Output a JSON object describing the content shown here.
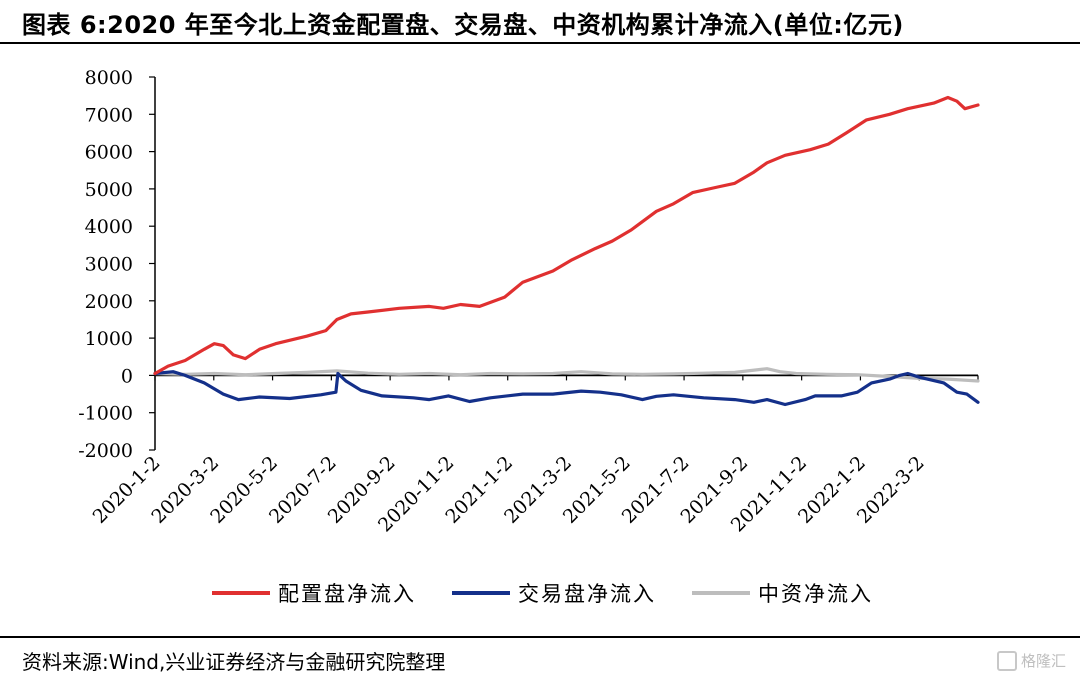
{
  "title": "图表 6:2020 年至今北上资金配置盘、交易盘、中资机构累计净流入(单位:亿元)",
  "source": "资料来源:Wind,兴业证券经济与金融研究院整理",
  "watermark": "格隆汇",
  "chart_data": {
    "type": "line",
    "title": "图表 6:2020 年至今北上资金配置盘、交易盘、中资机构累计净流入(单位:亿元)",
    "xlabel": "",
    "ylabel": "",
    "ylim": [
      -2000,
      8000
    ],
    "yticks": [
      -2000,
      -1000,
      0,
      1000,
      2000,
      3000,
      4000,
      5000,
      6000,
      7000,
      8000
    ],
    "ytick_labels": [
      "-2000",
      "-1000",
      "0",
      "1000",
      "2000",
      "3000",
      "4000",
      "5000",
      "6000",
      "7000",
      "8000"
    ],
    "x_tick_labels": [
      "2020-1-2",
      "2020-3-2",
      "2020-5-2",
      "2020-7-2",
      "2020-9-2",
      "2020-11-2",
      "2021-1-2",
      "2021-3-2",
      "2021-5-2",
      "2021-7-2",
      "2021-9-2",
      "2021-11-2",
      "2022-1-2",
      "2022-3-2"
    ],
    "xlim": [
      "2020-01-02",
      "2022-03-31"
    ],
    "grid": false,
    "legend_position": "bottom",
    "series": [
      {
        "name": "配置盘净流入",
        "color": "#e03030",
        "points": [
          [
            "2020-01-02",
            50
          ],
          [
            "2020-01-15",
            250
          ],
          [
            "2020-02-01",
            400
          ],
          [
            "2020-02-20",
            700
          ],
          [
            "2020-03-01",
            850
          ],
          [
            "2020-03-10",
            800
          ],
          [
            "2020-03-20",
            550
          ],
          [
            "2020-04-01",
            450
          ],
          [
            "2020-04-15",
            700
          ],
          [
            "2020-05-01",
            850
          ],
          [
            "2020-06-01",
            1050
          ],
          [
            "2020-06-20",
            1200
          ],
          [
            "2020-07-01",
            1500
          ],
          [
            "2020-07-15",
            1650
          ],
          [
            "2020-08-01",
            1700
          ],
          [
            "2020-09-01",
            1800
          ],
          [
            "2020-10-01",
            1850
          ],
          [
            "2020-10-15",
            1800
          ],
          [
            "2020-11-01",
            1900
          ],
          [
            "2020-11-20",
            1850
          ],
          [
            "2020-12-15",
            2100
          ],
          [
            "2021-01-02",
            2500
          ],
          [
            "2021-02-01",
            2800
          ],
          [
            "2021-02-20",
            3100
          ],
          [
            "2021-03-15",
            3400
          ],
          [
            "2021-04-01",
            3600
          ],
          [
            "2021-04-20",
            3900
          ],
          [
            "2021-05-15",
            4400
          ],
          [
            "2021-06-01",
            4600
          ],
          [
            "2021-06-20",
            4900
          ],
          [
            "2021-07-15",
            5050
          ],
          [
            "2021-08-01",
            5150
          ],
          [
            "2021-08-20",
            5450
          ],
          [
            "2021-09-02",
            5700
          ],
          [
            "2021-09-20",
            5900
          ],
          [
            "2021-10-15",
            6050
          ],
          [
            "2021-11-02",
            6200
          ],
          [
            "2021-11-20",
            6500
          ],
          [
            "2021-12-10",
            6850
          ],
          [
            "2022-01-02",
            7000
          ],
          [
            "2022-01-20",
            7150
          ],
          [
            "2022-02-15",
            7300
          ],
          [
            "2022-03-01",
            7450
          ],
          [
            "2022-03-10",
            7350
          ],
          [
            "2022-03-18",
            7150
          ],
          [
            "2022-03-31",
            7250
          ]
        ]
      },
      {
        "name": "交易盘净流入",
        "color": "#14308a",
        "points": [
          [
            "2020-01-02",
            50
          ],
          [
            "2020-01-20",
            100
          ],
          [
            "2020-02-01",
            0
          ],
          [
            "2020-02-20",
            -200
          ],
          [
            "2020-03-10",
            -500
          ],
          [
            "2020-03-25",
            -650
          ],
          [
            "2020-04-15",
            -580
          ],
          [
            "2020-05-15",
            -620
          ],
          [
            "2020-06-15",
            -520
          ],
          [
            "2020-06-30",
            -450
          ],
          [
            "2020-07-02",
            50
          ],
          [
            "2020-07-10",
            -150
          ],
          [
            "2020-07-25",
            -400
          ],
          [
            "2020-08-15",
            -550
          ],
          [
            "2020-09-15",
            -600
          ],
          [
            "2020-10-01",
            -650
          ],
          [
            "2020-10-20",
            -550
          ],
          [
            "2020-11-10",
            -700
          ],
          [
            "2020-12-01",
            -600
          ],
          [
            "2021-01-02",
            -500
          ],
          [
            "2021-02-01",
            -500
          ],
          [
            "2021-03-01",
            -420
          ],
          [
            "2021-03-20",
            -450
          ],
          [
            "2021-04-10",
            -520
          ],
          [
            "2021-05-01",
            -650
          ],
          [
            "2021-05-15",
            -560
          ],
          [
            "2021-06-01",
            -520
          ],
          [
            "2021-07-01",
            -600
          ],
          [
            "2021-08-01",
            -650
          ],
          [
            "2021-08-20",
            -720
          ],
          [
            "2021-09-02",
            -650
          ],
          [
            "2021-09-20",
            -780
          ],
          [
            "2021-10-10",
            -650
          ],
          [
            "2021-10-20",
            -550
          ],
          [
            "2021-11-15",
            -550
          ],
          [
            "2021-12-01",
            -450
          ],
          [
            "2021-12-15",
            -200
          ],
          [
            "2022-01-02",
            -100
          ],
          [
            "2022-01-12",
            0
          ],
          [
            "2022-01-20",
            50
          ],
          [
            "2022-02-01",
            -50
          ],
          [
            "2022-02-25",
            -200
          ],
          [
            "2022-03-10",
            -450
          ],
          [
            "2022-03-20",
            -500
          ],
          [
            "2022-03-31",
            -720
          ]
        ]
      },
      {
        "name": "中资净流入",
        "color": "#bdbdbd",
        "points": [
          [
            "2020-01-02",
            50
          ],
          [
            "2020-02-01",
            30
          ],
          [
            "2020-03-01",
            50
          ],
          [
            "2020-04-01",
            20
          ],
          [
            "2020-05-01",
            50
          ],
          [
            "2020-06-01",
            80
          ],
          [
            "2020-07-01",
            120
          ],
          [
            "2020-08-01",
            60
          ],
          [
            "2020-09-01",
            30
          ],
          [
            "2020-10-01",
            50
          ],
          [
            "2020-11-01",
            20
          ],
          [
            "2020-12-01",
            50
          ],
          [
            "2021-01-02",
            40
          ],
          [
            "2021-02-01",
            50
          ],
          [
            "2021-03-01",
            100
          ],
          [
            "2021-04-01",
            40
          ],
          [
            "2021-05-01",
            30
          ],
          [
            "2021-06-01",
            40
          ],
          [
            "2021-07-01",
            60
          ],
          [
            "2021-08-01",
            80
          ],
          [
            "2021-09-02",
            180
          ],
          [
            "2021-09-15",
            100
          ],
          [
            "2021-10-01",
            50
          ],
          [
            "2021-11-01",
            30
          ],
          [
            "2021-12-01",
            20
          ],
          [
            "2022-01-02",
            -30
          ],
          [
            "2022-02-01",
            -80
          ],
          [
            "2022-03-01",
            -100
          ],
          [
            "2022-03-31",
            -150
          ]
        ]
      }
    ]
  }
}
